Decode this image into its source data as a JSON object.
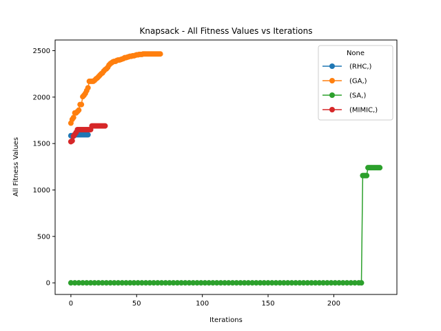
{
  "chart_data": {
    "type": "line",
    "title": "Knapsack - All Fitness Values vs Iterations",
    "xlabel": "Iterations",
    "ylabel": "All Fitness Values",
    "xlim": [
      -12,
      248
    ],
    "ylim": [
      -125,
      2615
    ],
    "x_ticks": [
      0,
      50,
      100,
      150,
      200
    ],
    "y_ticks": [
      0,
      500,
      1000,
      1500,
      2000,
      2500
    ],
    "grid": false,
    "legend": {
      "title": "None",
      "placement": "top-right"
    },
    "series": [
      {
        "name": "(RHC,)",
        "color": "#1f77b4",
        "x": [
          0,
          1,
          2,
          3,
          4,
          5,
          6,
          7,
          8,
          9,
          10,
          11,
          12,
          13
        ],
        "y": [
          1585,
          1585,
          1585,
          1590,
          1595,
          1595,
          1595,
          1595,
          1595,
          1595,
          1595,
          1595,
          1595,
          1595
        ]
      },
      {
        "name": "(GA,)",
        "color": "#ff7f0e",
        "x": [
          0,
          1,
          2,
          3,
          4,
          5,
          6,
          7,
          8,
          9,
          10,
          11,
          12,
          13,
          14,
          15,
          16,
          17,
          18,
          19,
          20,
          21,
          22,
          23,
          24,
          25,
          26,
          27,
          28,
          29,
          30,
          31,
          32,
          33,
          34,
          35,
          36,
          37,
          38,
          39,
          40,
          41,
          42,
          43,
          44,
          45,
          46,
          47,
          48,
          49,
          50,
          51,
          52,
          53,
          54,
          55,
          56,
          57,
          58,
          59,
          60,
          61,
          62,
          63,
          64,
          65,
          66,
          67,
          68
        ],
        "y": [
          1720,
          1760,
          1780,
          1830,
          1830,
          1845,
          1860,
          1920,
          1920,
          2005,
          2020,
          2040,
          2070,
          2100,
          2170,
          2170,
          2170,
          2170,
          2180,
          2195,
          2205,
          2220,
          2235,
          2250,
          2260,
          2280,
          2295,
          2305,
          2320,
          2345,
          2360,
          2370,
          2380,
          2385,
          2385,
          2395,
          2400,
          2400,
          2405,
          2410,
          2415,
          2425,
          2425,
          2430,
          2435,
          2440,
          2440,
          2445,
          2445,
          2450,
          2455,
          2455,
          2460,
          2460,
          2460,
          2465,
          2465,
          2465,
          2465,
          2465,
          2465,
          2465,
          2465,
          2465,
          2465,
          2465,
          2465,
          2465,
          2465
        ]
      },
      {
        "name": "(SA,)",
        "color": "#2ca02c",
        "x": [
          0,
          3,
          6,
          9,
          12,
          15,
          18,
          21,
          24,
          27,
          30,
          33,
          36,
          39,
          42,
          45,
          48,
          51,
          54,
          57,
          60,
          63,
          66,
          69,
          72,
          75,
          78,
          81,
          84,
          87,
          90,
          93,
          96,
          99,
          102,
          105,
          108,
          111,
          114,
          117,
          120,
          123,
          126,
          129,
          132,
          135,
          138,
          141,
          144,
          147,
          150,
          153,
          156,
          159,
          162,
          165,
          168,
          171,
          174,
          177,
          180,
          183,
          186,
          189,
          192,
          195,
          198,
          201,
          204,
          207,
          210,
          213,
          216,
          219,
          221,
          222,
          223,
          224,
          225,
          226,
          227,
          228,
          229,
          230,
          231,
          232,
          233,
          234,
          235
        ],
        "y": [
          0,
          0,
          0,
          0,
          0,
          0,
          0,
          0,
          0,
          0,
          0,
          0,
          0,
          0,
          0,
          0,
          0,
          0,
          0,
          0,
          0,
          0,
          0,
          0,
          0,
          0,
          0,
          0,
          0,
          0,
          0,
          0,
          0,
          0,
          0,
          0,
          0,
          0,
          0,
          0,
          0,
          0,
          0,
          0,
          0,
          0,
          0,
          0,
          0,
          0,
          0,
          0,
          0,
          0,
          0,
          0,
          0,
          0,
          0,
          0,
          0,
          0,
          0,
          0,
          0,
          0,
          0,
          0,
          0,
          0,
          0,
          0,
          0,
          0,
          0,
          1155,
          1155,
          1155,
          1155,
          1240,
          1240,
          1240,
          1240,
          1240,
          1240,
          1240,
          1240,
          1240,
          1240
        ]
      },
      {
        "name": "(MIMIC,)",
        "color": "#d62728",
        "x": [
          0,
          1,
          2,
          3,
          4,
          5,
          6,
          7,
          8,
          9,
          10,
          11,
          12,
          13,
          14,
          15,
          16,
          17,
          18,
          19,
          20,
          21,
          22,
          23,
          24,
          25,
          26
        ],
        "y": [
          1520,
          1530,
          1580,
          1600,
          1620,
          1650,
          1650,
          1650,
          1650,
          1650,
          1650,
          1650,
          1650,
          1650,
          1650,
          1650,
          1690,
          1690,
          1690,
          1690,
          1690,
          1690,
          1690,
          1690,
          1690,
          1690,
          1690
        ]
      }
    ]
  }
}
